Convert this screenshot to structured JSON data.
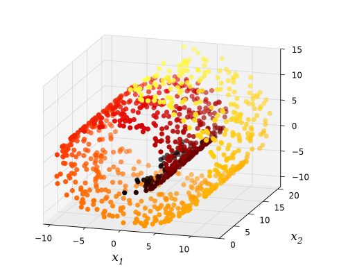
{
  "chart_data": {
    "type": "scatter",
    "subtype": "3d-swiss-roll",
    "title": "",
    "xlabel": "x1",
    "ylabel": "x2",
    "zlabel": "",
    "xlabel_parts": {
      "base": "x",
      "sub": "1"
    },
    "ylabel_parts": {
      "base": "x",
      "sub": "2"
    },
    "xlim": [
      -11,
      14
    ],
    "ylim": [
      0,
      21
    ],
    "zlim": [
      -12,
      15
    ],
    "x_ticks": [
      "-10",
      "-5",
      "0",
      "5",
      "10"
    ],
    "y_ticks": [
      "0",
      "5",
      "10",
      "15",
      "20"
    ],
    "z_ticks": [
      "-10",
      "-5",
      "0",
      "5",
      "10",
      "15"
    ],
    "grid": true,
    "colormap": "hot",
    "color_stops": [
      "#000000",
      "#8b0000",
      "#e00000",
      "#ff4000",
      "#ff8c00",
      "#ffc000",
      "#ffff40"
    ],
    "n_points": 1000,
    "point_rule": "x = t*cos(t), y = uniform(0,21), z = t*sin(t); t from 4.71 to 14.14; colour by t",
    "t_range": [
      4.71,
      14.14
    ]
  }
}
